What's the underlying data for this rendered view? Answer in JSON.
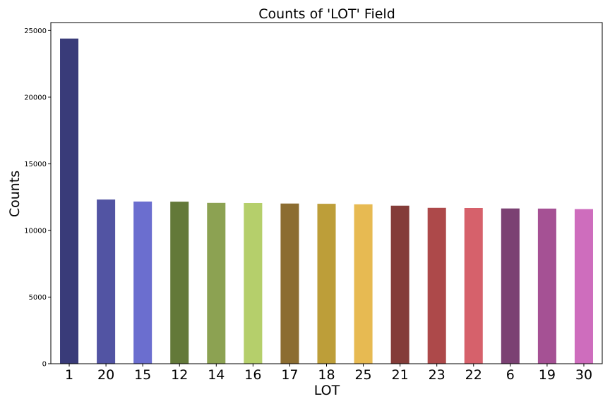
{
  "chart_data": {
    "type": "bar",
    "title": "Counts of 'LOT' Field",
    "xlabel": "LOT",
    "ylabel": "Counts",
    "categories": [
      "1",
      "20",
      "15",
      "12",
      "14",
      "16",
      "17",
      "18",
      "25",
      "21",
      "23",
      "22",
      "6",
      "19",
      "30"
    ],
    "values": [
      24400,
      12320,
      12170,
      12160,
      12070,
      12060,
      12020,
      12000,
      11960,
      11860,
      11700,
      11690,
      11650,
      11640,
      11600
    ],
    "colors": [
      "#393b79",
      "#5254a3",
      "#6b6ecf",
      "#637939",
      "#8ca252",
      "#b5cf6b",
      "#8c6d31",
      "#bd9e39",
      "#e7ba52",
      "#843c39",
      "#ad494a",
      "#d6616b",
      "#7b4173",
      "#a55194",
      "#ce6dbd"
    ],
    "ylim": [
      0,
      25600
    ],
    "yticks": [
      0,
      5000,
      10000,
      15000,
      20000,
      25000
    ],
    "grid": false,
    "legend": "none"
  }
}
